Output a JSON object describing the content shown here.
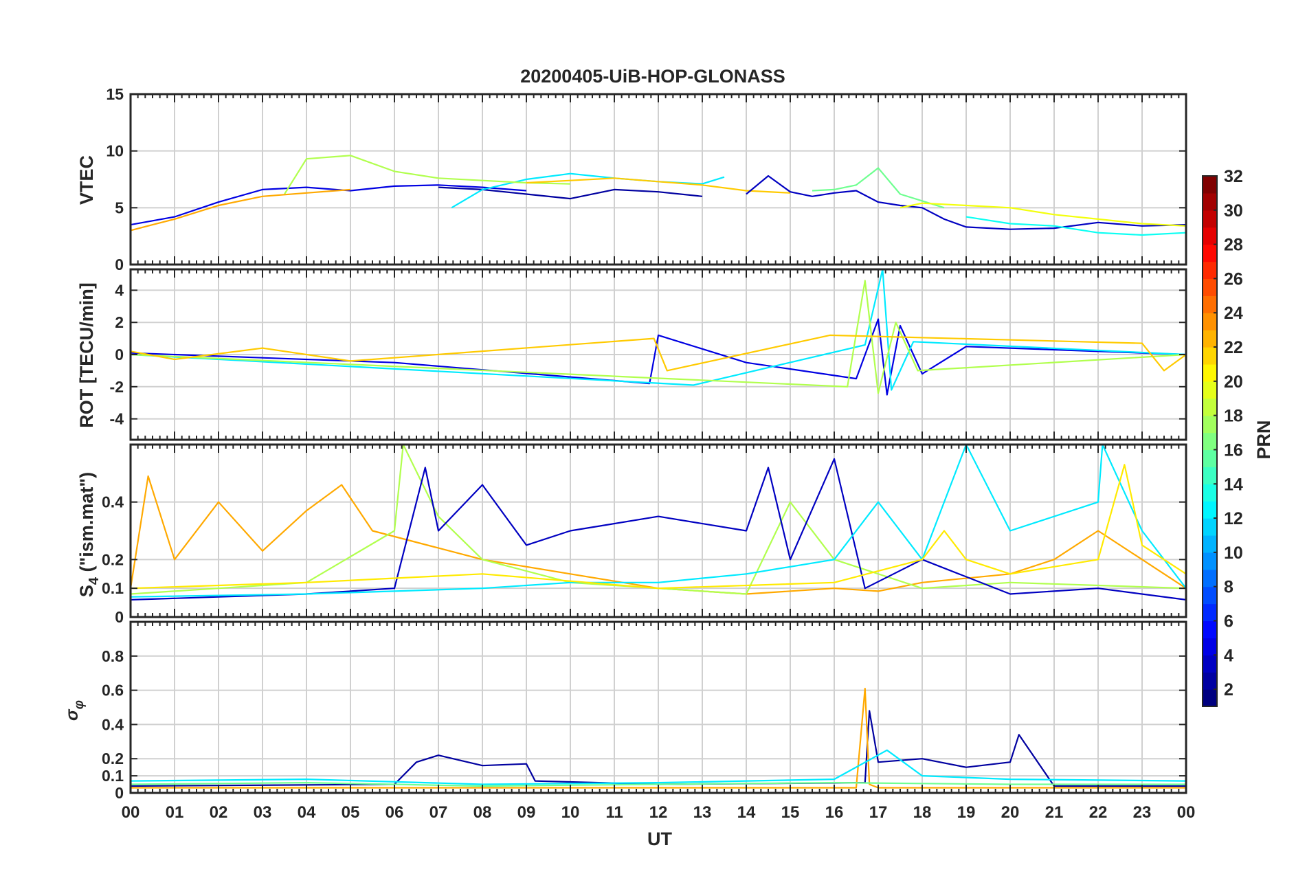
{
  "chart_data": [
    {
      "type": "line",
      "title": "20200405-UiB-HOP-GLONASS",
      "ylabel": "VTEC",
      "ylim": [
        0,
        15
      ],
      "yticks": [
        0,
        5,
        10,
        15
      ],
      "xlim": [
        0,
        24
      ],
      "series": [
        {
          "prn": 4,
          "x": [
            0,
            1,
            2,
            3,
            4,
            5,
            6,
            7,
            8,
            9
          ],
          "y": [
            3.5,
            4.2,
            5.5,
            6.6,
            6.8,
            6.5,
            6.9,
            7.0,
            6.8,
            6.5
          ]
        },
        {
          "prn": 2,
          "x": [
            7,
            8,
            9,
            10,
            11,
            12,
            13
          ],
          "y": [
            6.8,
            6.6,
            6.2,
            5.8,
            6.6,
            6.4,
            6.0
          ]
        },
        {
          "prn": 12,
          "x": [
            7.3,
            8,
            9,
            10,
            11,
            12,
            13,
            13.5
          ],
          "y": [
            5.0,
            6.6,
            7.5,
            8.0,
            7.6,
            7.3,
            7.1,
            7.7
          ]
        },
        {
          "prn": 18,
          "x": [
            3.5,
            4,
            5,
            6,
            7,
            8,
            9,
            10
          ],
          "y": [
            6.2,
            9.3,
            9.6,
            8.2,
            7.6,
            7.4,
            7.2,
            7.1
          ]
        },
        {
          "prn": 22,
          "x": [
            9,
            10,
            11,
            12,
            13,
            14,
            15
          ],
          "y": [
            7.2,
            7.4,
            7.6,
            7.3,
            7.0,
            6.5,
            6.3
          ]
        },
        {
          "prn": 3,
          "x": [
            14,
            14.5,
            15,
            15.5,
            16,
            16.5,
            17,
            17.5,
            18,
            18.5,
            19,
            20,
            21,
            22,
            23,
            24
          ],
          "y": [
            6.2,
            7.8,
            6.4,
            6.0,
            6.3,
            6.5,
            5.5,
            5.2,
            5.0,
            4.0,
            3.3,
            3.1,
            3.2,
            3.7,
            3.4,
            3.5
          ]
        },
        {
          "prn": 16,
          "x": [
            15.5,
            16,
            16.5,
            17,
            17.5,
            18,
            18.5
          ],
          "y": [
            6.5,
            6.6,
            7.0,
            8.5,
            6.2,
            5.6,
            5.0
          ]
        },
        {
          "prn": 20,
          "x": [
            17.5,
            18,
            19,
            20,
            21,
            22,
            23,
            24
          ],
          "y": [
            5.0,
            5.4,
            5.2,
            5.0,
            4.4,
            4.0,
            3.6,
            3.4
          ]
        },
        {
          "prn": 13,
          "x": [
            19,
            20,
            21,
            22,
            23,
            24
          ],
          "y": [
            4.2,
            3.6,
            3.4,
            2.8,
            2.6,
            2.8
          ]
        },
        {
          "prn": 23,
          "x": [
            0,
            0.5,
            1,
            2,
            3,
            4,
            5
          ],
          "y": [
            3.0,
            3.5,
            4.0,
            5.2,
            6.0,
            6.3,
            6.6
          ]
        }
      ]
    },
    {
      "type": "line",
      "ylabel": "ROT [TECU/min]",
      "ylim": [
        -5.3,
        5.3
      ],
      "yticks": [
        -4,
        -2,
        0,
        2,
        4
      ],
      "xlim": [
        0,
        24
      ],
      "series": [
        {
          "prn": 4,
          "x": [
            0,
            6,
            11.8,
            12,
            14,
            16.5,
            17,
            17.2,
            17.5,
            18,
            19,
            24
          ],
          "y": [
            0.1,
            -0.5,
            -1.8,
            1.2,
            -0.5,
            -1.5,
            2.2,
            -2.5,
            1.8,
            -1.2,
            0.5,
            0
          ]
        },
        {
          "prn": 12,
          "x": [
            0,
            12.8,
            16.7,
            17.1,
            17.3,
            17.8,
            24
          ],
          "y": [
            0,
            -1.9,
            0.6,
            5.3,
            -2.2,
            0.8,
            0
          ]
        },
        {
          "prn": 18,
          "x": [
            0,
            16.3,
            16.7,
            17,
            17.4,
            17.9,
            24
          ],
          "y": [
            0,
            -2.0,
            4.6,
            -2.4,
            2.0,
            -1.0,
            0
          ]
        },
        {
          "prn": 22,
          "x": [
            0,
            1,
            3,
            5,
            11.9,
            12.2,
            15.9,
            23,
            23.5,
            24
          ],
          "y": [
            0.2,
            -0.3,
            0.4,
            -0.4,
            1.0,
            -1.0,
            1.2,
            0.7,
            -1.0,
            0
          ]
        }
      ]
    },
    {
      "type": "line",
      "ylabel": "S4 (\"ism.mat\")",
      "ylim": [
        0,
        0.6
      ],
      "yticks": [
        0,
        0.1,
        0.2,
        0.4
      ],
      "xlim": [
        0,
        24
      ],
      "series": [
        {
          "prn": 23,
          "x": [
            0,
            0.4,
            1,
            2,
            3,
            4,
            4.8,
            5.5,
            8,
            10,
            12,
            14,
            16,
            17,
            18,
            20,
            21,
            22,
            23,
            24
          ],
          "y": [
            0.1,
            0.49,
            0.2,
            0.4,
            0.23,
            0.37,
            0.46,
            0.3,
            0.2,
            0.15,
            0.1,
            0.08,
            0.1,
            0.09,
            0.12,
            0.15,
            0.2,
            0.3,
            0.2,
            0.1
          ]
        },
        {
          "prn": 18,
          "x": [
            0,
            2,
            4,
            6,
            6.2,
            7,
            8,
            10,
            12,
            14,
            15,
            16,
            18,
            20,
            24
          ],
          "y": [
            0.08,
            0.1,
            0.12,
            0.3,
            0.6,
            0.35,
            0.2,
            0.12,
            0.1,
            0.08,
            0.4,
            0.2,
            0.1,
            0.12,
            0.1
          ]
        },
        {
          "prn": 3,
          "x": [
            0,
            2,
            4,
            6,
            6.7,
            7,
            8,
            9,
            10,
            12,
            14,
            14.5,
            15,
            16,
            16.7,
            18,
            20,
            22,
            24
          ],
          "y": [
            0.06,
            0.07,
            0.08,
            0.1,
            0.52,
            0.3,
            0.46,
            0.25,
            0.3,
            0.35,
            0.3,
            0.52,
            0.2,
            0.55,
            0.1,
            0.2,
            0.08,
            0.1,
            0.06
          ]
        },
        {
          "prn": 12,
          "x": [
            0,
            4,
            8,
            10,
            12,
            14,
            16,
            17,
            18,
            19,
            20,
            22,
            22.1,
            23,
            24
          ],
          "y": [
            0.07,
            0.08,
            0.1,
            0.12,
            0.12,
            0.15,
            0.2,
            0.4,
            0.2,
            0.6,
            0.3,
            0.4,
            0.6,
            0.3,
            0.1
          ]
        },
        {
          "prn": 21,
          "x": [
            0,
            4,
            8,
            12,
            16,
            18,
            18.5,
            19,
            20,
            22,
            22.6,
            23,
            24
          ],
          "y": [
            0.1,
            0.12,
            0.15,
            0.1,
            0.12,
            0.2,
            0.3,
            0.2,
            0.15,
            0.2,
            0.53,
            0.25,
            0.15
          ]
        }
      ]
    },
    {
      "type": "line",
      "ylabel": "σφ",
      "xlabel": "UT",
      "ylim": [
        0,
        1
      ],
      "yticks": [
        0,
        0.1,
        0.2,
        0.4,
        0.6,
        0.8
      ],
      "xlim": [
        0,
        24
      ],
      "xticklabels": [
        "00",
        "01",
        "02",
        "03",
        "04",
        "05",
        "06",
        "07",
        "08",
        "09",
        "10",
        "11",
        "12",
        "13",
        "14",
        "15",
        "16",
        "17",
        "18",
        "19",
        "20",
        "21",
        "22",
        "23",
        "00"
      ],
      "series": [
        {
          "prn": 2,
          "x": [
            0,
            6,
            6.5,
            7,
            8,
            9,
            9.2,
            12,
            16.7,
            16.8,
            17,
            18,
            19,
            20,
            20.2,
            21,
            24
          ],
          "y": [
            0.04,
            0.05,
            0.18,
            0.22,
            0.16,
            0.17,
            0.07,
            0.05,
            0.06,
            0.48,
            0.18,
            0.2,
            0.15,
            0.18,
            0.34,
            0.04,
            0.04
          ]
        },
        {
          "prn": 23,
          "x": [
            0,
            12,
            16.5,
            16.7,
            16.8,
            17,
            24
          ],
          "y": [
            0.03,
            0.03,
            0.03,
            0.61,
            0.05,
            0.03,
            0.03
          ]
        },
        {
          "prn": 12,
          "x": [
            0,
            4,
            8,
            12,
            16,
            17.2,
            18,
            20,
            24
          ],
          "y": [
            0.07,
            0.08,
            0.05,
            0.06,
            0.08,
            0.25,
            0.1,
            0.08,
            0.07
          ]
        },
        {
          "prn": 16,
          "x": [
            0,
            4,
            8,
            12,
            16,
            20,
            24
          ],
          "y": [
            0.05,
            0.06,
            0.04,
            0.05,
            0.06,
            0.05,
            0.05
          ]
        }
      ]
    }
  ],
  "colorbar": {
    "label": "PRN",
    "min": 1,
    "max": 32,
    "ticks": [
      2,
      4,
      6,
      8,
      10,
      12,
      14,
      16,
      18,
      20,
      22,
      24,
      26,
      28,
      30,
      32
    ],
    "colormap": "jet"
  },
  "labels": {
    "title": "20200405-UiB-HOP-GLONASS",
    "xlabel": "UT",
    "s4_main": "S",
    "s4_sub": "4",
    "s4_rest": " (\"ism.mat\")",
    "sigma_main": "σ",
    "sigma_sub": "φ"
  }
}
